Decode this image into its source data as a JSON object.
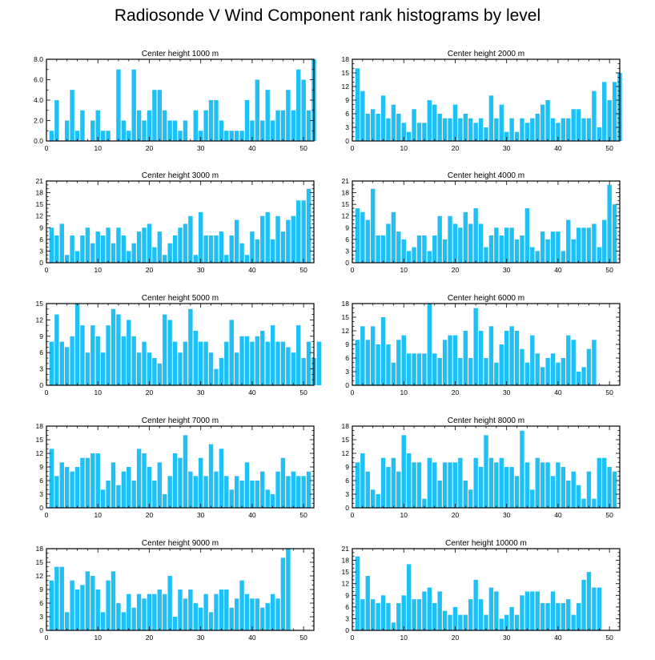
{
  "title": "Radiosonde V Wind Component rank histograms by level",
  "colors": {
    "bar": "#1ec0f5",
    "axis": "#000000",
    "background": "#ffffff"
  },
  "chart_data": [
    {
      "type": "bar",
      "title": "Center height 1000 m",
      "xlim": [
        0,
        52
      ],
      "ylim": [
        0,
        8
      ],
      "xticks": [
        0,
        10,
        20,
        30,
        40,
        50
      ],
      "yticks": [
        0,
        2,
        4,
        6,
        8
      ],
      "ytick_labels": [
        "0.0",
        "2.0",
        "4.0",
        "6.0",
        "8.0"
      ],
      "values": [
        0,
        1,
        4,
        0,
        2,
        5,
        1,
        3,
        0,
        2,
        3,
        1,
        1,
        0,
        7,
        2,
        1,
        7,
        3,
        2,
        3,
        5,
        5,
        3,
        2,
        2,
        1,
        2,
        0,
        3,
        1,
        3,
        4,
        4,
        2,
        1,
        1,
        1,
        1,
        4,
        2,
        6,
        2,
        5,
        2,
        3,
        3,
        5,
        3,
        7,
        6,
        3,
        8
      ]
    },
    {
      "type": "bar",
      "title": "Center height 2000 m",
      "xlim": [
        0,
        52
      ],
      "ylim": [
        0,
        18
      ],
      "xticks": [
        0,
        10,
        20,
        30,
        40,
        50
      ],
      "yticks": [
        0,
        3,
        6,
        9,
        12,
        15,
        18
      ],
      "ytick_labels": [
        "0",
        "3",
        "6",
        "9",
        "12",
        "15",
        "18"
      ],
      "values": [
        0,
        16,
        11,
        6,
        7,
        6,
        10,
        5,
        8,
        6,
        4,
        2,
        7,
        4,
        4,
        9,
        8,
        6,
        5,
        5,
        8,
        5,
        6,
        5,
        4,
        5,
        3,
        10,
        5,
        8,
        2,
        5,
        2,
        5,
        4,
        5,
        6,
        8,
        9,
        5,
        4,
        5,
        5,
        7,
        7,
        5,
        5,
        11,
        3,
        13,
        9,
        13,
        15
      ]
    },
    {
      "type": "bar",
      "title": "Center height 3000 m",
      "xlim": [
        0,
        52
      ],
      "ylim": [
        0,
        21
      ],
      "xticks": [
        0,
        10,
        20,
        30,
        40,
        50
      ],
      "yticks": [
        0,
        3,
        6,
        9,
        12,
        15,
        18,
        21
      ],
      "ytick_labels": [
        "0",
        "3",
        "6",
        "9",
        "12",
        "15",
        "18",
        "21"
      ],
      "values": [
        0,
        9,
        7,
        10,
        2,
        7,
        3,
        7,
        9,
        5,
        8,
        7,
        9,
        5,
        9,
        7,
        3,
        5,
        8,
        9,
        10,
        4,
        8,
        2,
        5,
        7,
        9,
        10,
        12,
        2,
        13,
        7,
        7,
        7,
        8,
        2,
        7,
        11,
        5,
        2,
        8,
        6,
        12,
        13,
        6,
        12,
        8,
        11,
        12,
        16,
        16,
        19
      ]
    },
    {
      "type": "bar",
      "title": "Center height 4000 m",
      "xlim": [
        0,
        52
      ],
      "ylim": [
        0,
        21
      ],
      "xticks": [
        0,
        10,
        20,
        30,
        40,
        50
      ],
      "yticks": [
        0,
        3,
        6,
        9,
        12,
        15,
        18,
        21
      ],
      "ytick_labels": [
        "0",
        "3",
        "6",
        "9",
        "12",
        "15",
        "18",
        "21"
      ],
      "values": [
        0,
        14,
        13,
        11,
        19,
        7,
        7,
        10,
        13,
        8,
        6,
        3,
        4,
        7,
        7,
        3,
        7,
        12,
        6,
        12,
        10,
        9,
        13,
        10,
        14,
        10,
        4,
        7,
        9,
        7,
        9,
        9,
        6,
        7,
        14,
        4,
        3,
        8,
        6,
        8,
        8,
        3,
        11,
        6,
        9,
        9,
        9,
        10,
        4,
        11,
        20,
        15
      ]
    },
    {
      "type": "bar",
      "title": "Center height 5000 m",
      "xlim": [
        0,
        52
      ],
      "ylim": [
        0,
        15
      ],
      "xticks": [
        0,
        10,
        20,
        30,
        40,
        50
      ],
      "yticks": [
        0,
        3,
        6,
        9,
        12,
        15
      ],
      "ytick_labels": [
        "0",
        "3",
        "6",
        "9",
        "12",
        "15"
      ],
      "values": [
        0,
        8,
        13,
        8,
        7,
        9,
        15,
        11,
        6,
        11,
        9,
        6,
        11,
        14,
        13,
        9,
        12,
        9,
        6,
        8,
        6,
        5,
        4,
        13,
        12,
        8,
        6,
        8,
        14,
        10,
        8,
        8,
        6,
        3,
        5,
        8,
        12,
        6,
        9,
        9,
        8,
        9,
        10,
        8,
        11,
        8,
        8,
        7,
        6,
        11,
        5,
        8,
        5,
        8
      ]
    },
    {
      "type": "bar",
      "title": "Center height 6000 m",
      "xlim": [
        0,
        52
      ],
      "ylim": [
        0,
        18
      ],
      "xticks": [
        0,
        10,
        20,
        30,
        40,
        50
      ],
      "yticks": [
        0,
        3,
        6,
        9,
        12,
        15,
        18
      ],
      "ytick_labels": [
        "0",
        "3",
        "6",
        "9",
        "12",
        "15",
        "18"
      ],
      "values": [
        0,
        10,
        13,
        10,
        13,
        9,
        15,
        9,
        5,
        10,
        11,
        7,
        7,
        7,
        7,
        18,
        7,
        6,
        10,
        11,
        11,
        6,
        12,
        6,
        17,
        12,
        6,
        13,
        5,
        9,
        12,
        13,
        12,
        8,
        5,
        11,
        7,
        4,
        6,
        7,
        5,
        6,
        11,
        10,
        3,
        4,
        8,
        10
      ]
    },
    {
      "type": "bar",
      "title": "Center height 7000 m",
      "xlim": [
        0,
        52
      ],
      "ylim": [
        0,
        18
      ],
      "xticks": [
        0,
        10,
        20,
        30,
        40,
        50
      ],
      "yticks": [
        0,
        3,
        6,
        9,
        12,
        15,
        18
      ],
      "ytick_labels": [
        "0",
        "3",
        "6",
        "9",
        "12",
        "15",
        "18"
      ],
      "values": [
        0,
        13,
        7,
        10,
        9,
        8,
        9,
        11,
        11,
        12,
        12,
        4,
        6,
        10,
        5,
        8,
        9,
        6,
        13,
        12,
        9,
        6,
        10,
        3,
        7,
        12,
        11,
        16,
        8,
        7,
        11,
        7,
        14,
        8,
        13,
        7,
        4,
        7,
        6,
        10,
        6,
        6,
        8,
        4,
        3,
        8,
        11,
        7,
        8,
        7,
        7,
        8
      ]
    },
    {
      "type": "bar",
      "title": "Center height 8000 m",
      "xlim": [
        0,
        52
      ],
      "ylim": [
        0,
        18
      ],
      "xticks": [
        0,
        10,
        20,
        30,
        40,
        50
      ],
      "yticks": [
        0,
        3,
        6,
        9,
        12,
        15,
        18
      ],
      "ytick_labels": [
        "0",
        "3",
        "6",
        "9",
        "12",
        "15",
        "18"
      ],
      "values": [
        0,
        10,
        12,
        8,
        4,
        3,
        11,
        9,
        11,
        8,
        16,
        12,
        10,
        10,
        2,
        11,
        10,
        6,
        10,
        10,
        10,
        11,
        6,
        4,
        11,
        9,
        16,
        11,
        10,
        11,
        9,
        9,
        7,
        17,
        10,
        4,
        11,
        10,
        10,
        7,
        10,
        9,
        6,
        8,
        5,
        2,
        8,
        2,
        11,
        11,
        9,
        8
      ]
    },
    {
      "type": "bar",
      "title": "Center height 9000 m",
      "xlim": [
        0,
        52
      ],
      "ylim": [
        0,
        18
      ],
      "xticks": [
        0,
        10,
        20,
        30,
        40,
        50
      ],
      "yticks": [
        0,
        3,
        6,
        9,
        12,
        15,
        18
      ],
      "ytick_labels": [
        "0",
        "3",
        "6",
        "9",
        "12",
        "15",
        "18"
      ],
      "values": [
        0,
        11,
        14,
        14,
        4,
        11,
        9,
        10,
        13,
        12,
        9,
        4,
        11,
        13,
        6,
        4,
        8,
        5,
        8,
        7,
        8,
        8,
        9,
        8,
        12,
        3,
        9,
        7,
        9,
        6,
        5,
        8,
        4,
        8,
        9,
        9,
        5,
        7,
        11,
        8,
        7,
        7,
        5,
        6,
        8,
        7,
        16,
        18
      ]
    },
    {
      "type": "bar",
      "title": "Center height 10000 m",
      "xlim": [
        0,
        52
      ],
      "ylim": [
        0,
        21
      ],
      "xticks": [
        0,
        10,
        20,
        30,
        40,
        50
      ],
      "yticks": [
        0,
        3,
        6,
        9,
        12,
        15,
        18,
        21
      ],
      "ytick_labels": [
        "0",
        "3",
        "6",
        "9",
        "12",
        "15",
        "18",
        "21"
      ],
      "values": [
        0,
        19,
        8,
        14,
        8,
        7,
        9,
        7,
        2,
        7,
        9,
        17,
        8,
        8,
        10,
        11,
        7,
        10,
        5,
        4,
        6,
        4,
        4,
        8,
        13,
        8,
        4,
        11,
        10,
        3,
        4,
        6,
        4,
        9,
        10,
        10,
        10,
        7,
        7,
        10,
        7,
        7,
        8,
        4,
        7,
        13,
        15,
        11,
        11
      ]
    }
  ]
}
